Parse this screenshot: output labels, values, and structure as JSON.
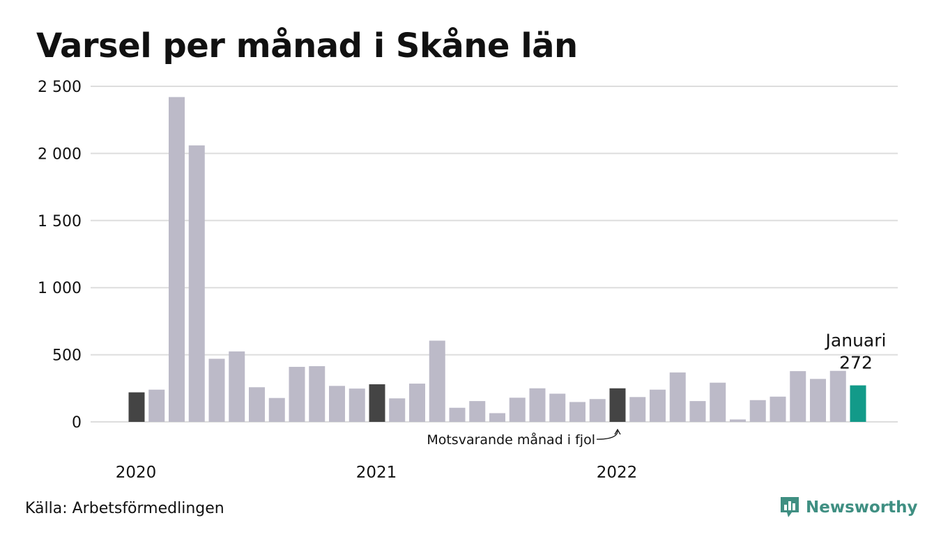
{
  "title": "Varsel per månad i Skåne län",
  "source": "Källa: Arbetsförmedlingen",
  "brand": "Newsworthy",
  "colors": {
    "regular": "#bcbac8",
    "same_month_prev": "#444444",
    "current": "#129a89",
    "grid": "#dddddd",
    "brand": "#3f8f82"
  },
  "chart_data": {
    "type": "bar",
    "title": "Varsel per månad i Skåne län",
    "xlabel": "",
    "ylabel": "",
    "ylim": [
      0,
      2500
    ],
    "yticks": [
      {
        "value": 0,
        "label": "0"
      },
      {
        "value": 500,
        "label": "500"
      },
      {
        "value": 1000,
        "label": "1 000"
      },
      {
        "value": 1500,
        "label": "1 500"
      },
      {
        "value": 2000,
        "label": "2 000"
      },
      {
        "value": 2500,
        "label": "2 500"
      }
    ],
    "grid": true,
    "year_labels": [
      {
        "label": "2020",
        "index": 0
      },
      {
        "label": "2021",
        "index": 12
      },
      {
        "label": "2022",
        "index": 24
      }
    ],
    "values": [
      220,
      240,
      2420,
      2060,
      470,
      525,
      258,
      178,
      410,
      415,
      268,
      248,
      280,
      175,
      285,
      605,
      105,
      155,
      65,
      180,
      250,
      210,
      148,
      170,
      250,
      185,
      240,
      368,
      155,
      292,
      18,
      162,
      188,
      378,
      320,
      380,
      272
    ],
    "highlight_prev_year_indices": [
      0,
      12,
      24
    ],
    "current_index": 36,
    "current_label": "Januari",
    "current_value_label": "272",
    "annotation": "Motsvarande månad i fjol"
  }
}
